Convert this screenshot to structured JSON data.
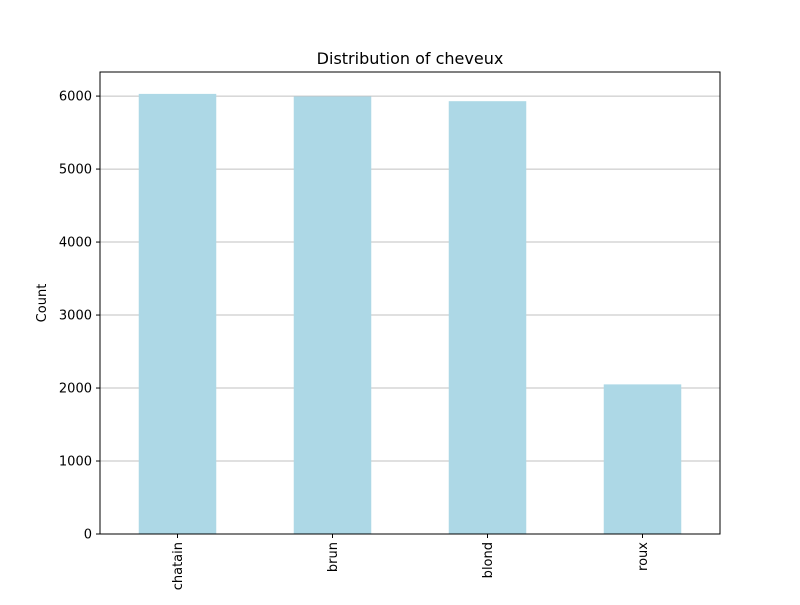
{
  "chart_data": {
    "type": "bar",
    "title": "Distribution of cheveux",
    "xlabel": "",
    "ylabel": "Count",
    "categories": [
      "chatain",
      "brun",
      "blond",
      "roux"
    ],
    "values": [
      6030,
      5995,
      5930,
      2050
    ],
    "ylim": [
      0,
      6330
    ],
    "yticks": [
      0,
      1000,
      2000,
      3000,
      4000,
      5000,
      6000
    ],
    "grid": "horizontal",
    "bar_color": "#add8e6",
    "grid_color": "#c0c0c0"
  }
}
